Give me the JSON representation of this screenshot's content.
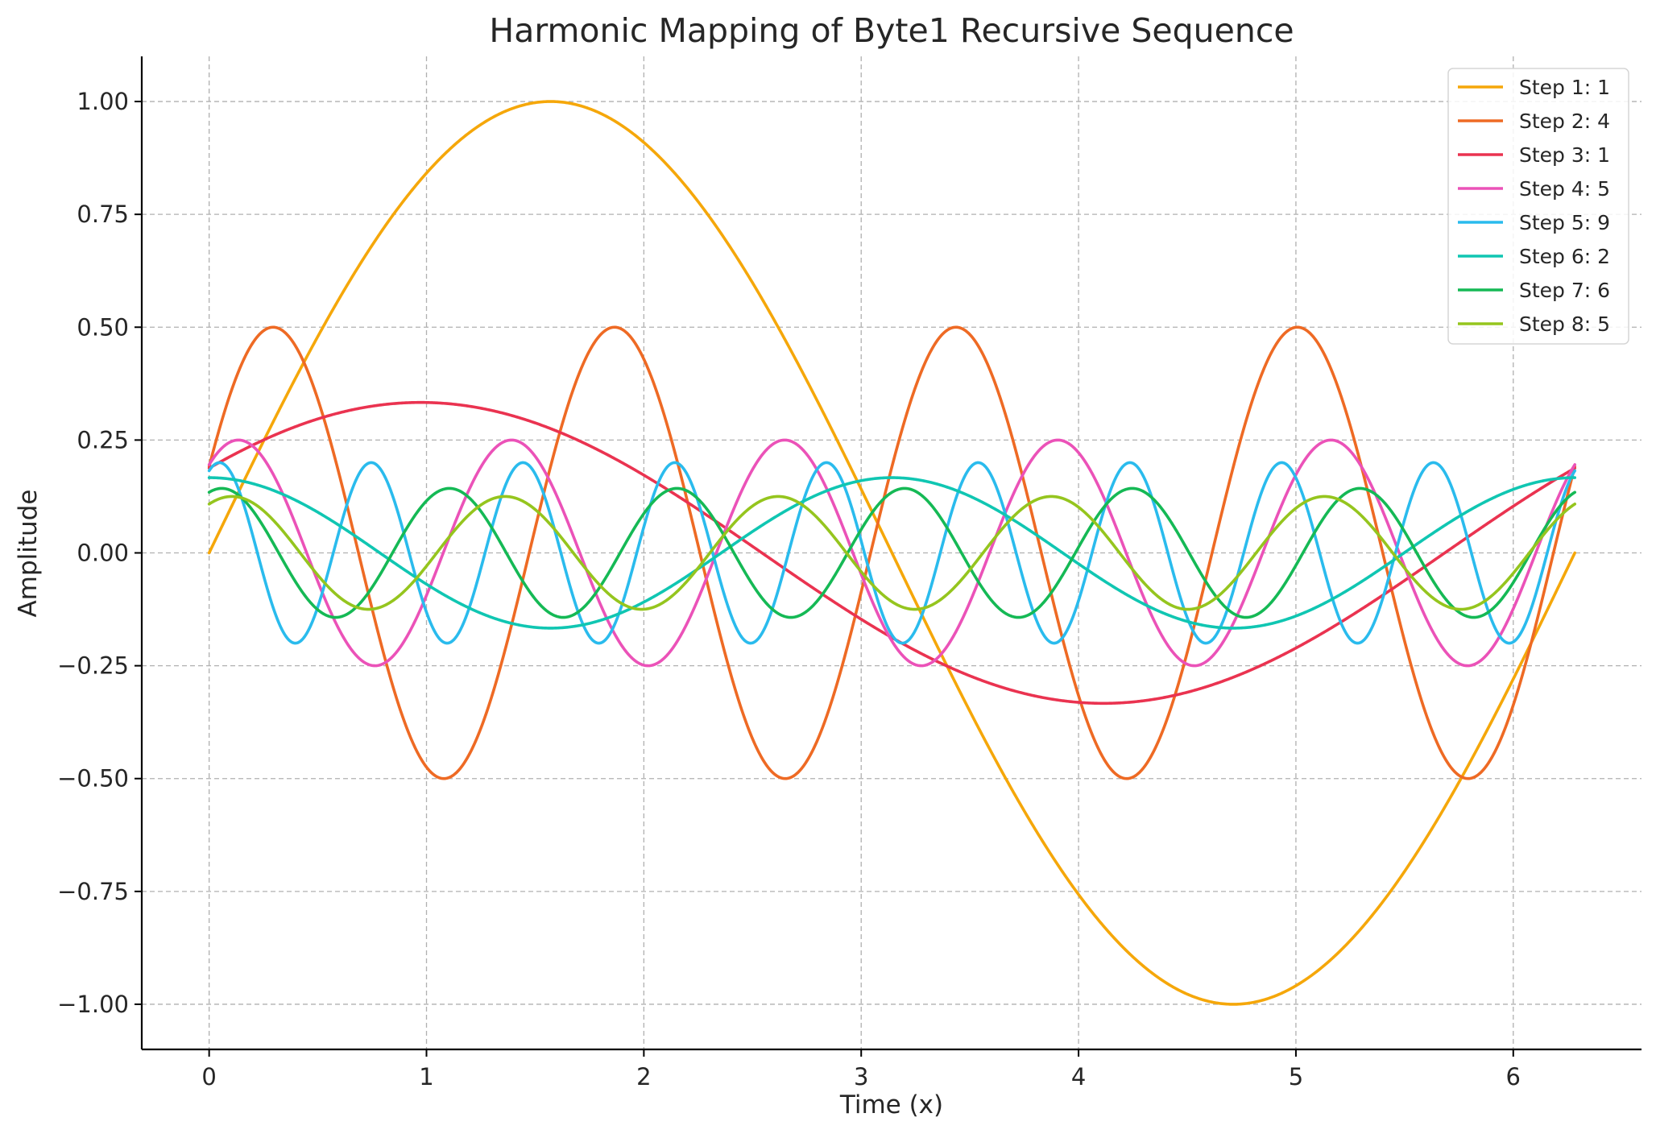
{
  "chart_data": {
    "type": "line",
    "title": "Harmonic Mapping of Byte1 Recursive Sequence",
    "xlabel": "Time (x)",
    "ylabel": "Amplitude",
    "xlim": [
      -0.31,
      6.59
    ],
    "ylim": [
      -1.1,
      1.1
    ],
    "x_range": [
      0,
      6.2832
    ],
    "x_ticks": [
      0,
      1,
      2,
      3,
      4,
      5,
      6
    ],
    "x_tick_labels": [
      "0",
      "1",
      "2",
      "3",
      "4",
      "5",
      "6"
    ],
    "y_ticks": [
      -1.0,
      -0.75,
      -0.5,
      -0.25,
      0.0,
      0.25,
      0.5,
      0.75,
      1.0
    ],
    "y_tick_labels": [
      "−1.00",
      "−0.75",
      "−0.50",
      "−0.25",
      "0.00",
      "0.25",
      "0.50",
      "0.75",
      "1.00"
    ],
    "grid": true,
    "legend_position": "top-right",
    "series": [
      {
        "name": "Step 1: 1",
        "color": "#F5A70A",
        "amplitude": 1.0,
        "frequency": 1,
        "phase": 0
      },
      {
        "name": "Step 2: 4",
        "color": "#EE6A24",
        "amplitude": 0.5,
        "frequency": 4,
        "phase": 0.3927
      },
      {
        "name": "Step 3: 1",
        "color": "#EA3350",
        "amplitude": 0.3333,
        "frequency": 1,
        "phase": 0.5984
      },
      {
        "name": "Step 4: 5",
        "color": "#EB52B8",
        "amplitude": 0.25,
        "frequency": 5,
        "phase": 0.8976
      },
      {
        "name": "Step 5: 9",
        "color": "#2ABBED",
        "amplitude": 0.2,
        "frequency": 9,
        "phase": 1.1424
      },
      {
        "name": "Step 6: 2",
        "color": "#10C6B2",
        "amplitude": 0.1667,
        "frequency": 2,
        "phase": 1.5708
      },
      {
        "name": "Step 7: 6",
        "color": "#15B955",
        "amplitude": 0.1429,
        "frequency": 6,
        "phase": 1.2217
      },
      {
        "name": "Step 8: 5",
        "color": "#95C51E",
        "amplitude": 0.125,
        "frequency": 5,
        "phase": 1.0472
      }
    ]
  }
}
